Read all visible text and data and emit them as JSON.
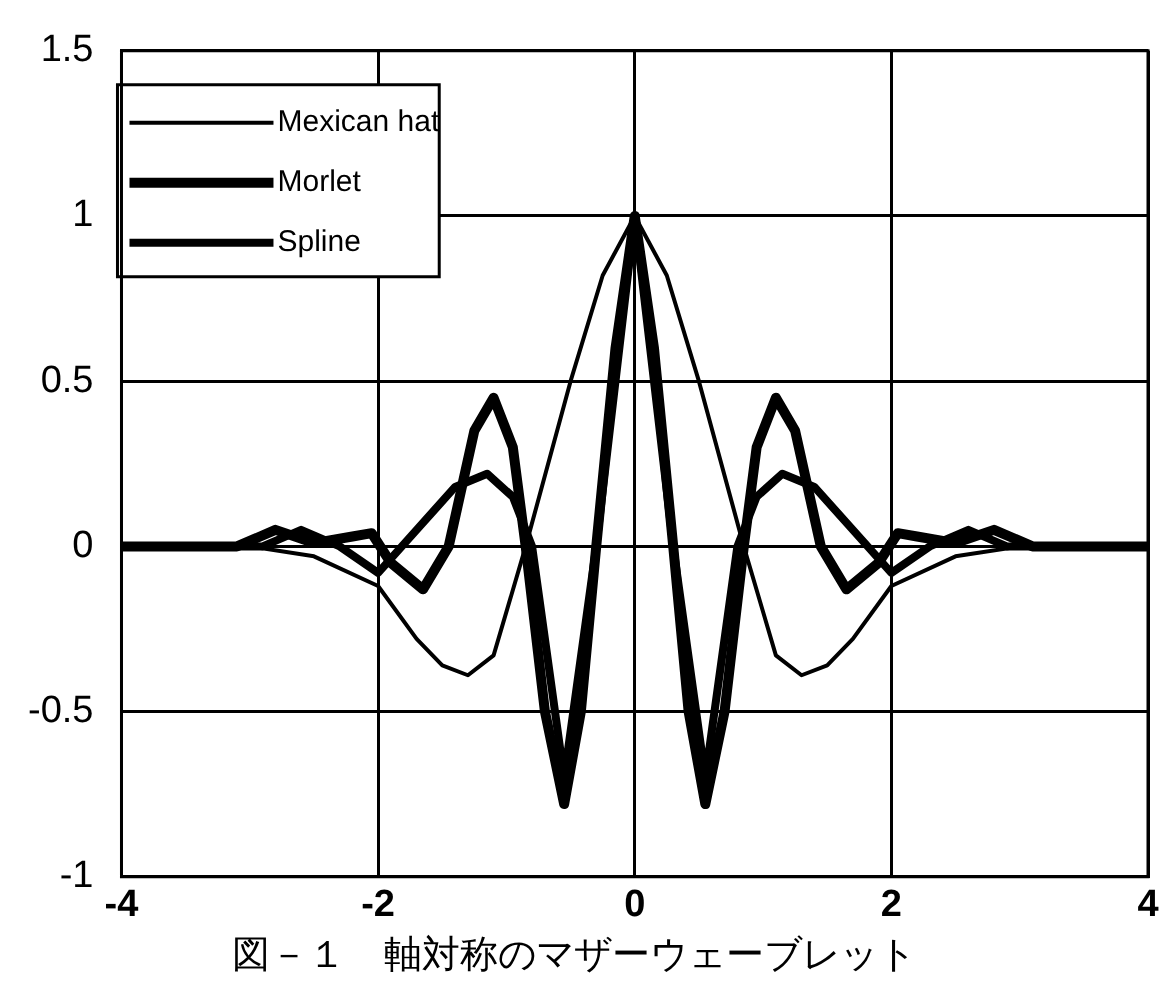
{
  "chart_data": {
    "type": "line",
    "title": "図－１　軸対称のマザーウェーブレット",
    "xlim": [
      -4,
      4
    ],
    "xticks": [
      -4,
      -2,
      0,
      2,
      4
    ],
    "ylim": [
      -1,
      1.5
    ],
    "yticks": [
      -1,
      -0.5,
      0,
      0.5,
      1,
      1.5
    ],
    "grid": true,
    "legend": "top left",
    "marker": "none",
    "line_style": "solid",
    "series": [
      {
        "name": "Mexican hat",
        "color": "#000000",
        "x": [
          -4,
          -3,
          -2.5,
          -2,
          -1.7,
          -1.5,
          -1.3,
          -1.1,
          -0.85,
          -0.5,
          -0.25,
          0,
          0.25,
          0.5,
          0.85,
          1.1,
          1.3,
          1.5,
          1.7,
          2,
          2.5,
          3,
          4
        ],
        "values": [
          0,
          0,
          -0.03,
          -0.12,
          -0.28,
          -0.36,
          -0.39,
          -0.33,
          0,
          0.5,
          0.82,
          1,
          0.82,
          0.5,
          0,
          -0.33,
          -0.39,
          -0.36,
          -0.28,
          -0.12,
          -0.03,
          0,
          0
        ]
      },
      {
        "name": "Morlet",
        "color": "#000000",
        "x": [
          -4,
          -3.1,
          -2.8,
          -2.5,
          -2.2,
          -2.05,
          -1.9,
          -1.65,
          -1.45,
          -1.25,
          -1.1,
          -0.95,
          -0.85,
          -0.7,
          -0.55,
          -0.42,
          -0.3,
          -0.15,
          0,
          0.15,
          0.3,
          0.42,
          0.55,
          0.7,
          0.85,
          0.95,
          1.1,
          1.25,
          1.45,
          1.65,
          1.9,
          2.05,
          2.2,
          2.5,
          2.8,
          3.1,
          4
        ],
        "values": [
          0,
          0,
          0.05,
          0.01,
          0.03,
          0.04,
          -0.05,
          -0.13,
          0,
          0.35,
          0.45,
          0.3,
          0,
          -0.5,
          -0.78,
          -0.5,
          0,
          0.6,
          1,
          0.6,
          0,
          -0.5,
          -0.78,
          -0.5,
          0,
          0.3,
          0.45,
          0.35,
          0,
          -0.13,
          -0.05,
          0.04,
          0.03,
          0.01,
          0.05,
          0,
          0
        ]
      },
      {
        "name": "Spline",
        "color": "#000000",
        "x": [
          -4,
          -2.9,
          -2.6,
          -2.3,
          -2,
          -1.7,
          -1.4,
          -1.15,
          -0.95,
          -0.8,
          -0.55,
          -0.3,
          0,
          0.3,
          0.55,
          0.8,
          0.95,
          1.15,
          1.4,
          1.7,
          2,
          2.3,
          2.6,
          2.9,
          4
        ],
        "values": [
          0,
          0,
          0.05,
          0,
          -0.08,
          0.05,
          0.18,
          0.22,
          0.15,
          0,
          -0.7,
          0,
          1,
          0,
          -0.7,
          0,
          0.15,
          0.22,
          0.18,
          0.05,
          -0.08,
          0,
          0.05,
          0,
          0
        ]
      }
    ]
  }
}
